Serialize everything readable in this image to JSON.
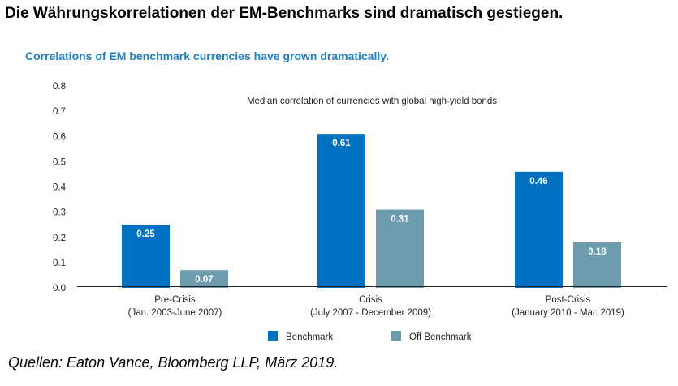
{
  "header": {
    "title": "Die Währungskorrelationen der EM-Benchmarks sind dramatisch gestiegen.",
    "subtitle": "Correlations of EM benchmark currencies have grown dramatically."
  },
  "footer": {
    "source": "Quellen: Eaton Vance, Bloomberg LLP, März 2019."
  },
  "chart_data": {
    "type": "bar",
    "title": "Median correlation of currencies with global high-yield bonds",
    "categories": [
      [
        "Pre-Crisis",
        "(Jan. 2003-June 2007)"
      ],
      [
        "Crisis",
        "(July 2007 - December 2009)"
      ],
      [
        "Post-Crisis",
        "(January 2010 - Mar. 2019)"
      ]
    ],
    "series": [
      {
        "name": "Benchmark",
        "color": "#0070c0",
        "values": [
          0.25,
          0.61,
          0.46
        ]
      },
      {
        "name": "Off Benchmark",
        "color": "#6e9caf",
        "values": [
          0.07,
          0.31,
          0.18
        ]
      }
    ],
    "ylim": [
      0,
      0.8
    ],
    "yticks": [
      "0.0",
      "0.1",
      "0.2",
      "0.3",
      "0.4",
      "0.5",
      "0.6",
      "0.7",
      "0.8"
    ],
    "data_labels": [
      [
        "0.25",
        "0.61",
        "0.46"
      ],
      [
        "0.07",
        "0.31",
        "0.18"
      ]
    ],
    "grid": false,
    "legend_position": "bottom"
  }
}
